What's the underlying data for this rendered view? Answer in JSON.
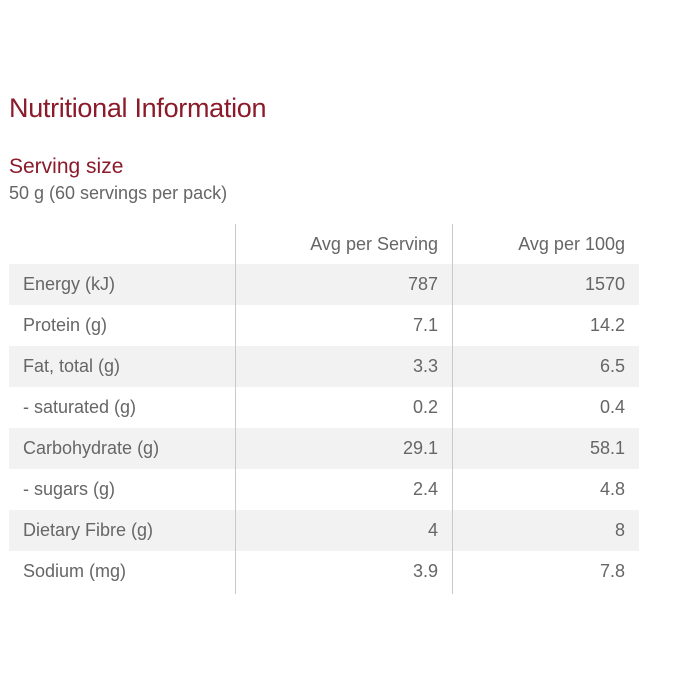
{
  "title": "Nutritional Information",
  "serving": {
    "label": "Serving size",
    "value": "50 g (60 servings per pack)"
  },
  "table": {
    "headers": {
      "name": "",
      "per_serving": "Avg per Serving",
      "per_100g": "Avg per 100g"
    },
    "rows": [
      {
        "name": "Energy (kJ)",
        "per_serving": "787",
        "per_100g": "1570"
      },
      {
        "name": "Protein (g)",
        "per_serving": "7.1",
        "per_100g": "14.2"
      },
      {
        "name": "Fat, total (g)",
        "per_serving": "3.3",
        "per_100g": "6.5"
      },
      {
        "name": "- saturated (g)",
        "per_serving": "0.2",
        "per_100g": "0.4"
      },
      {
        "name": "Carbohydrate (g)",
        "per_serving": "29.1",
        "per_100g": "58.1"
      },
      {
        "name": "- sugars (g)",
        "per_serving": "2.4",
        "per_100g": "4.8"
      },
      {
        "name": "Dietary Fibre (g)",
        "per_serving": "4",
        "per_100g": "8"
      },
      {
        "name": "Sodium (mg)",
        "per_serving": "3.9",
        "per_100g": "7.8"
      }
    ]
  },
  "colors": {
    "heading": "#8b1a2a",
    "text": "#666666",
    "row_shade": "#f2f2f2",
    "divider": "#c9c9c9"
  }
}
